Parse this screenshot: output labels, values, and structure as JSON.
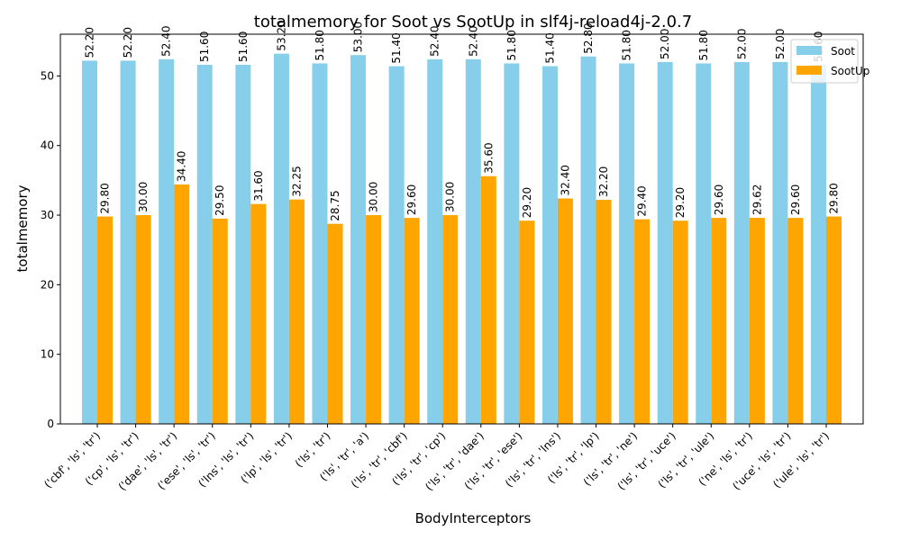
{
  "chart_data": {
    "type": "bar",
    "title": "totalmemory for Soot vs SootUp in slf4j-reload4j-2.0.7",
    "xlabel": "BodyInterceptors",
    "ylabel": "totalmemory",
    "ylim": [
      0,
      56
    ],
    "yticks": [
      0,
      10,
      20,
      30,
      40,
      50
    ],
    "grid": false,
    "legend_position": "top-right",
    "categories": [
      "('cbf', 'ls', 'tr')",
      "('cp', 'ls', 'tr')",
      "('dae', 'ls', 'tr')",
      "('ese', 'ls', 'tr')",
      "('lns', 'ls', 'tr')",
      "('lp', 'ls', 'tr')",
      "('ls', 'tr')",
      "('ls', 'tr', 'a')",
      "('ls', 'tr', 'cbf')",
      "('ls', 'tr', 'cp')",
      "('ls', 'tr', 'dae')",
      "('ls', 'tr', 'ese')",
      "('ls', 'tr', 'lns')",
      "('ls', 'tr', 'lp')",
      "('ls', 'tr', 'ne')",
      "('ls', 'tr', 'uce')",
      "('ls', 'tr', 'ule')",
      "('ne', 'ls', 'tr')",
      "('uce', 'ls', 'tr')",
      "('ule', 'ls', 'tr')"
    ],
    "series": [
      {
        "name": "Soot",
        "color": "#87ceeb",
        "values": [
          52.2,
          52.2,
          52.4,
          51.6,
          51.6,
          53.2,
          51.8,
          53.0,
          51.4,
          52.4,
          52.4,
          51.8,
          51.4,
          52.8,
          51.8,
          52.0,
          51.8,
          52.0,
          52.0,
          51.6
        ],
        "labels": [
          "52.20",
          "52.20",
          "52.40",
          "51.60",
          "51.60",
          "53.20",
          "51.80",
          "53.00",
          "51.40",
          "52.40",
          "52.40",
          "51.80",
          "51.40",
          "52.80",
          "51.80",
          "52.00",
          "51.80",
          "52.00",
          "52.00",
          "51.60"
        ]
      },
      {
        "name": "SootUp",
        "color": "#ffa500",
        "values": [
          29.8,
          30.0,
          34.4,
          29.5,
          31.6,
          32.25,
          28.75,
          30.0,
          29.6,
          30.0,
          35.6,
          29.2,
          32.4,
          32.2,
          29.4,
          29.2,
          29.6,
          29.62,
          29.6,
          29.8
        ],
        "labels": [
          "29.80",
          "30.00",
          "34.40",
          "29.50",
          "31.60",
          "32.25",
          "28.75",
          "30.00",
          "29.60",
          "30.00",
          "35.60",
          "29.20",
          "32.40",
          "32.20",
          "29.40",
          "29.20",
          "29.60",
          "29.62",
          "29.60",
          "29.80"
        ]
      }
    ]
  }
}
